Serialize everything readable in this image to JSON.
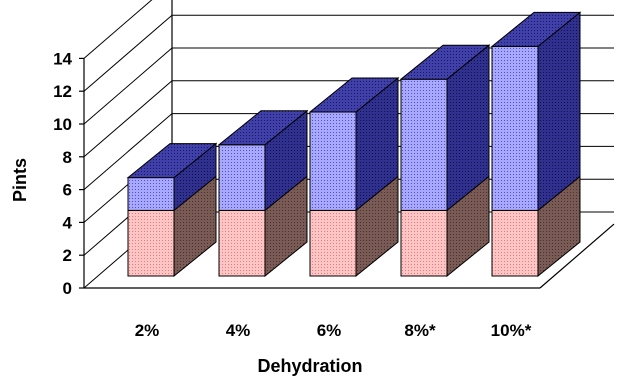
{
  "chart_data": {
    "type": "bar",
    "subtype": "stacked-3d",
    "title": "",
    "xlabel": "Dehydration",
    "ylabel": "Pints",
    "categories": [
      "2%",
      "4%",
      "6%",
      "8%*",
      "10%*"
    ],
    "ylim": [
      0,
      14
    ],
    "yticks": [
      0,
      2,
      4,
      6,
      8,
      10,
      12,
      14
    ],
    "grid": true,
    "legend": "none",
    "series": [
      {
        "values": [
          4,
          4,
          4,
          4,
          4
        ],
        "color": "#ffb3b3",
        "side_color": "#7a5550",
        "top_color": "#ffb3b3"
      },
      {
        "values": [
          2,
          4,
          6,
          8,
          10
        ],
        "color": "#9999ff",
        "side_color": "#2a2a8c",
        "top_color": "#3a3aa0"
      }
    ]
  }
}
